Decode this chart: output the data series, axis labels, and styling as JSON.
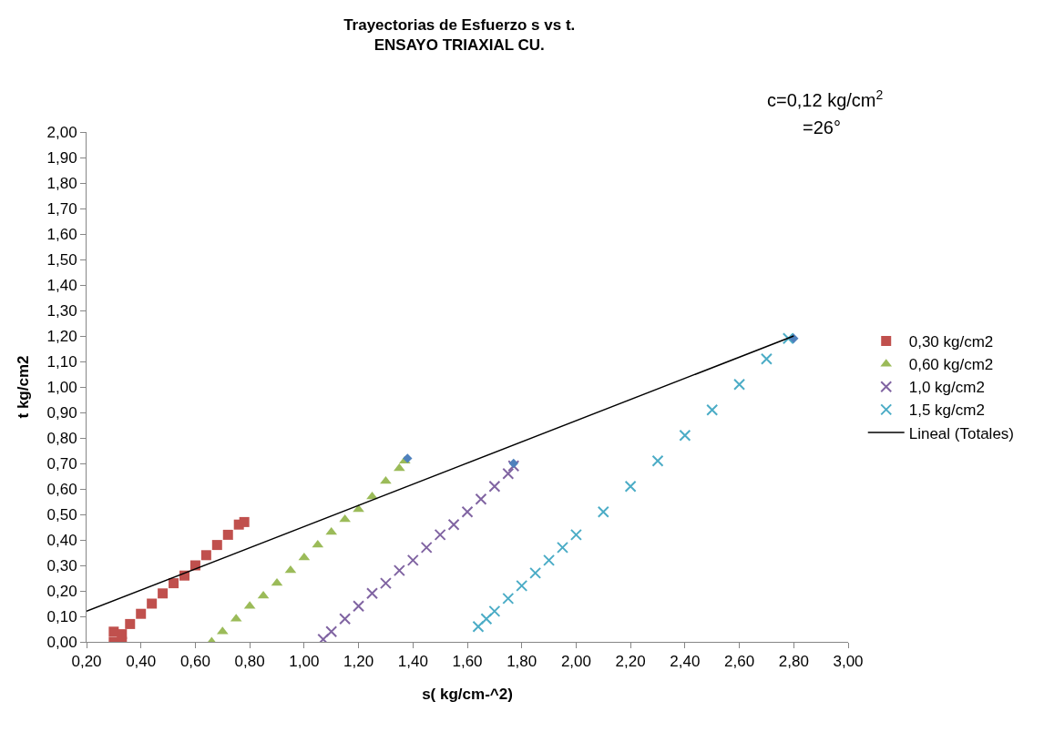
{
  "chart_data": {
    "type": "scatter",
    "title": "Trayectorias de Esfuerzo s vs t.\nENSAYO TRIAXIAL CU.",
    "xlabel": "s( kg/cm-^2)",
    "ylabel": "t kg/cm2",
    "annotations": [
      "c=0,12 kg/cm$^{2}$",
      "=26°"
    ],
    "xlim": [
      0.2,
      3.0
    ],
    "ylim": [
      0,
      2.0
    ],
    "xticks": [
      {
        "value": 0.2,
        "label": "0,20"
      },
      {
        "value": 0.4,
        "label": "0,40"
      },
      {
        "value": 0.6,
        "label": "0,60"
      },
      {
        "value": 0.8,
        "label": "0,80"
      },
      {
        "value": 1.0,
        "label": "1,00"
      },
      {
        "value": 1.2,
        "label": "1,20"
      },
      {
        "value": 1.4,
        "label": "1,40"
      },
      {
        "value": 1.6,
        "label": "1,60"
      },
      {
        "value": 1.8,
        "label": "1,80"
      },
      {
        "value": 2.0,
        "label": "2,00"
      },
      {
        "value": 2.2,
        "label": "2,20"
      },
      {
        "value": 2.4,
        "label": "2,40"
      },
      {
        "value": 2.6,
        "label": "2,60"
      },
      {
        "value": 2.8,
        "label": "2,80"
      },
      {
        "value": 3.0,
        "label": "3,00"
      }
    ],
    "yticks": [
      {
        "value": 0,
        "label": "0,00"
      },
      {
        "value": 0.1,
        "label": "0,10"
      },
      {
        "value": 0.2,
        "label": "0,20"
      },
      {
        "value": 0.3,
        "label": "0,30"
      },
      {
        "value": 0.4,
        "label": "0,40"
      },
      {
        "value": 0.5,
        "label": "0,50"
      },
      {
        "value": 0.6,
        "label": "0,60"
      },
      {
        "value": 0.7,
        "label": "0,70"
      },
      {
        "value": 0.8,
        "label": "0,80"
      },
      {
        "value": 0.9,
        "label": "0,90"
      },
      {
        "value": 1.0,
        "label": "1,00"
      },
      {
        "value": 1.1,
        "label": "1,10"
      },
      {
        "value": 1.2,
        "label": "1,20"
      },
      {
        "value": 1.3,
        "label": "1,30"
      },
      {
        "value": 1.4,
        "label": "1,40"
      },
      {
        "value": 1.5,
        "label": "1,50"
      },
      {
        "value": 1.6,
        "label": "1,60"
      },
      {
        "value": 1.7,
        "label": "1,70"
      },
      {
        "value": 1.8,
        "label": "1,80"
      },
      {
        "value": 1.9,
        "label": "1,90"
      },
      {
        "value": 2.0,
        "label": "2,00"
      }
    ],
    "grid": false,
    "legend": "right",
    "series": [
      {
        "name": "0,30 kg/cm2",
        "color": "#c0504d",
        "marker": "square",
        "x": [
          0.3,
          0.33,
          0.3,
          0.33,
          0.36,
          0.4,
          0.44,
          0.48,
          0.52,
          0.56,
          0.6,
          0.64,
          0.68,
          0.72,
          0.76,
          0.78
        ],
        "values": [
          0.0,
          0.0,
          0.04,
          0.03,
          0.07,
          0.11,
          0.15,
          0.19,
          0.23,
          0.26,
          0.3,
          0.34,
          0.38,
          0.42,
          0.46,
          0.47
        ]
      },
      {
        "name": "0,60 kg/cm2",
        "color": "#9bbb59",
        "marker": "triangle",
        "x": [
          0.66,
          0.7,
          0.75,
          0.8,
          0.85,
          0.9,
          0.95,
          1.0,
          1.05,
          1.1,
          1.15,
          1.2,
          1.25,
          1.3,
          1.35,
          1.37
        ],
        "values": [
          0.0,
          0.04,
          0.09,
          0.14,
          0.18,
          0.23,
          0.28,
          0.33,
          0.38,
          0.43,
          0.48,
          0.52,
          0.57,
          0.63,
          0.68,
          0.71
        ]
      },
      {
        "name": "1,0 kg/cm2",
        "color": "#8064a2",
        "marker": "cross",
        "x": [
          1.07,
          1.1,
          1.15,
          1.2,
          1.25,
          1.3,
          1.35,
          1.4,
          1.45,
          1.5,
          1.55,
          1.6,
          1.65,
          1.7,
          1.75,
          1.77
        ],
        "values": [
          0.01,
          0.04,
          0.09,
          0.14,
          0.19,
          0.23,
          0.28,
          0.32,
          0.37,
          0.42,
          0.46,
          0.51,
          0.56,
          0.61,
          0.66,
          0.69
        ]
      },
      {
        "name": "1,5 kg/cm2",
        "color": "#4bacc6",
        "marker": "cross",
        "x": [
          1.64,
          1.67,
          1.7,
          1.75,
          1.8,
          1.85,
          1.9,
          1.95,
          2.0,
          2.1,
          2.2,
          2.3,
          2.4,
          2.5,
          2.6,
          2.7,
          2.78
        ],
        "values": [
          0.06,
          0.09,
          0.12,
          0.17,
          0.22,
          0.27,
          0.32,
          0.37,
          0.42,
          0.51,
          0.61,
          0.71,
          0.81,
          0.91,
          1.01,
          1.11,
          1.19
        ]
      },
      {
        "color": "#4f81bd",
        "marker": "diamond",
        "x": [
          1.38,
          1.77,
          2.8
        ],
        "values": [
          0.72,
          0.7,
          1.19
        ]
      },
      {
        "name": "Lineal (Totales)",
        "type": "line",
        "color": "#000000",
        "marker": "none",
        "line_style": "solid",
        "x": [
          0.2,
          2.8
        ],
        "values": [
          0.12,
          1.2
        ]
      }
    ]
  }
}
